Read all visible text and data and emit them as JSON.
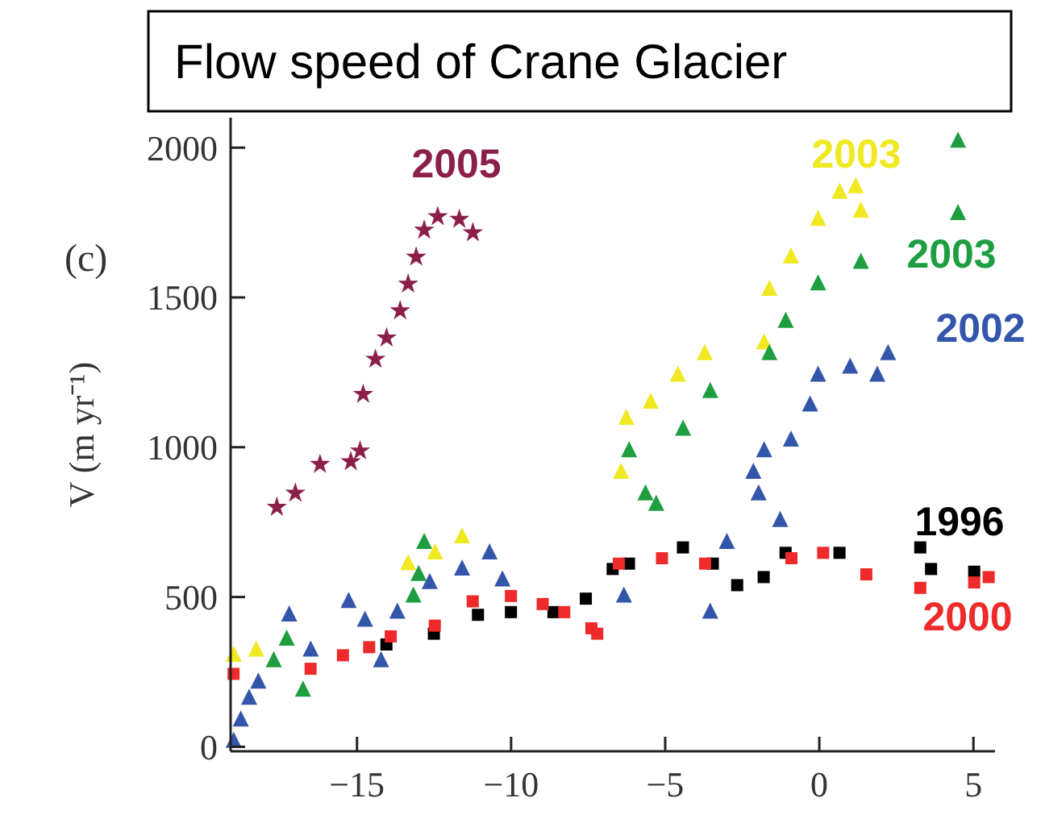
{
  "chart_data": {
    "type": "scatter",
    "title": "Flow speed of Crane Glacier",
    "ylabel": "V (m yr⁻¹)",
    "annotations": [
      "(c)"
    ],
    "xlim": [
      -19.1,
      5.7
    ],
    "ylim": [
      -15,
      2100
    ],
    "xticks": [
      {
        "value": -15,
        "label": "−15"
      },
      {
        "value": -10,
        "label": "−10"
      },
      {
        "value": -5,
        "label": "−5"
      },
      0,
      5
    ],
    "yticks": [
      0,
      500,
      1000,
      1500,
      2000
    ],
    "grid": false,
    "series": [
      {
        "name": "1996",
        "color": "#000000",
        "marker": "square",
        "x": [
          -14.04,
          -12.5,
          -11.07,
          -10,
          -8.62,
          -7.57,
          -6.7,
          -6.17,
          -4.42,
          -3.45,
          -2.66,
          -1.8,
          -1.09,
          0.66,
          3.28,
          3.63,
          5.03
        ],
        "values": [
          341,
          377,
          440,
          449,
          449,
          494,
          593,
          611,
          665,
          611,
          539,
          566,
          647,
          647,
          665,
          593,
          584
        ]
      },
      {
        "name": "2000",
        "color": "#ee2a2a",
        "marker": "square",
        "x": [
          -19.0,
          -16.5,
          -15.45,
          -14.6,
          -13.9,
          -12.47,
          -11.24,
          -10.0,
          -8.97,
          -8.27,
          -7.39,
          -7.2,
          -6.5,
          -5.1,
          -3.7,
          -0.9,
          0.13,
          1.53,
          3.28,
          5.03,
          5.5
        ],
        "values": [
          243,
          260,
          305,
          332,
          368,
          404,
          485,
          503,
          476,
          449,
          395,
          377,
          611,
          629,
          611,
          629,
          647,
          575,
          530,
          548,
          566
        ]
      },
      {
        "name": "2002",
        "color": "#3355aa",
        "marker": "triangle",
        "x": [
          -19.0,
          -18.77,
          -18.5,
          -18.2,
          -17.2,
          -16.5,
          -15.27,
          -14.74,
          -14.22,
          -13.69,
          -12.64,
          -11.59,
          -10.7,
          -10.28,
          -6.34,
          -3.54,
          -3.0,
          -2.14,
          -1.97,
          -1.79,
          -1.27,
          -0.92,
          -0.3,
          -0.04,
          1.0,
          1.88,
          2.23
        ],
        "values": [
          18,
          89,
          162,
          216,
          440,
          323,
          485,
          422,
          287,
          449,
          548,
          593,
          647,
          557,
          503,
          449,
          682,
          916,
          844,
          988,
          755,
          1024,
          1141,
          1240,
          1267,
          1240,
          1312
        ]
      },
      {
        "name": "2003",
        "color": "#f0e820",
        "marker": "triangle",
        "x": [
          -19.0,
          -18.27,
          -13.34,
          -12.47,
          -11.59,
          -6.43,
          -6.26,
          -5.47,
          -4.59,
          -3.72,
          -1.79,
          -1.62,
          -0.92,
          -0.04,
          0.66,
          1.18,
          1.35
        ],
        "values": [
          305,
          323,
          611,
          647,
          701,
          916,
          1096,
          1150,
          1240,
          1312,
          1348,
          1527,
          1635,
          1760,
          1851,
          1869,
          1788
        ]
      },
      {
        "name": "2003",
        "color": "#1e9e40",
        "marker": "triangle",
        "x": [
          -17.7,
          -17.28,
          -16.75,
          -13.17,
          -13.0,
          -12.82,
          -6.17,
          -5.64,
          -5.29,
          -4.42,
          -3.54,
          -1.62,
          -1.09,
          -0.04,
          1.35,
          4.5,
          4.5
        ],
        "values": [
          287,
          359,
          189,
          503,
          575,
          682,
          988,
          844,
          809,
          1060,
          1186,
          1312,
          1420,
          1545,
          1617,
          1780,
          2021
        ]
      },
      {
        "name": "2005",
        "color": "#8b1f4a",
        "marker": "star",
        "x": [
          -17.6,
          -17.0,
          -16.2,
          -15.2,
          -14.9,
          -14.8,
          -14.4,
          -14.04,
          -13.6,
          -13.34,
          -13.08,
          -12.82,
          -12.38,
          -11.68,
          -11.24
        ],
        "values": [
          800,
          847,
          943,
          952,
          988,
          1177,
          1294,
          1365,
          1456,
          1545,
          1635,
          1725,
          1770,
          1761,
          1716
        ]
      }
    ]
  }
}
